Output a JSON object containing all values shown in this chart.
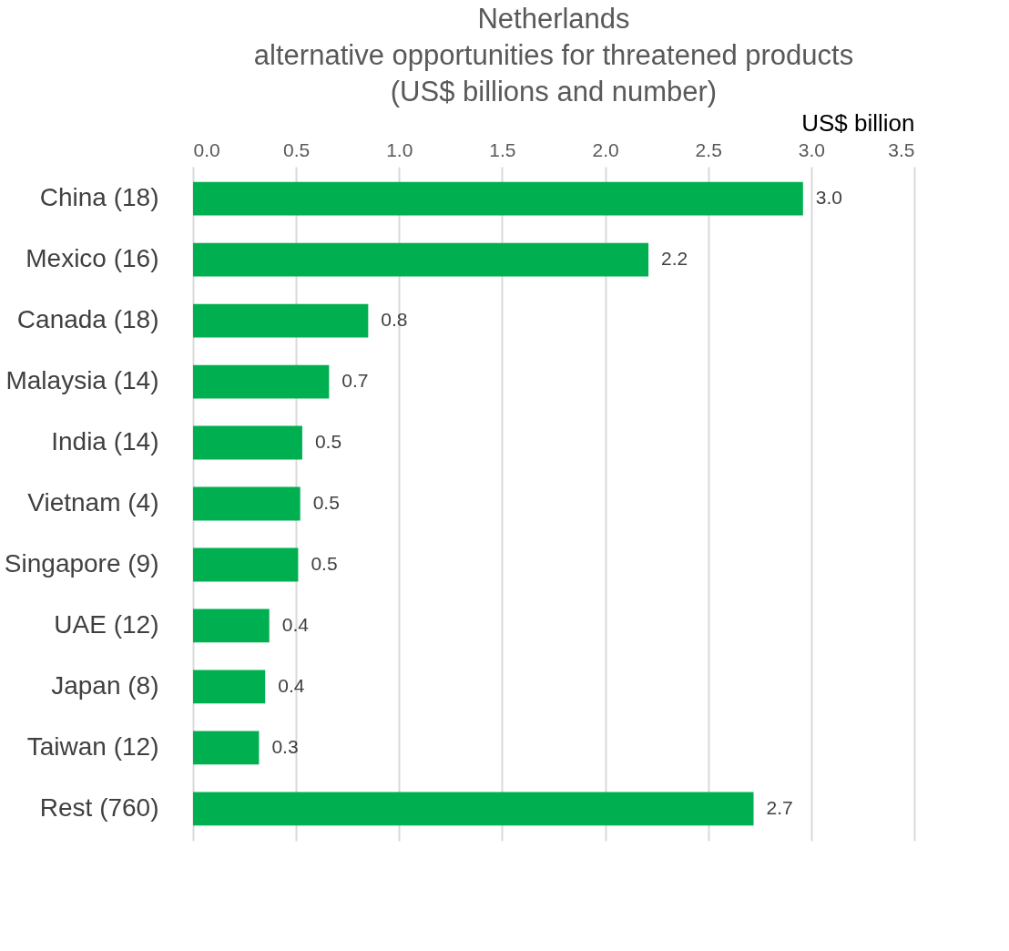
{
  "chart_data": {
    "type": "bar",
    "orientation": "horizontal",
    "title": "Netherlands\nalternative opportunities for threatened products\n(US$ billions and number)",
    "xlabel": "US$ billion",
    "categories": [
      "China (18)",
      "Mexico (16)",
      "Canada (18)",
      "Malaysia (14)",
      "India (14)",
      "Vietnam (4)",
      "Singapore (9)",
      "UAE (12)",
      "Japan (8)",
      "Taiwan (12)",
      "Rest (760)"
    ],
    "values": [
      2.96,
      2.21,
      0.85,
      0.66,
      0.53,
      0.52,
      0.51,
      0.37,
      0.35,
      0.32,
      2.72
    ],
    "value_labels": [
      "3.0",
      "2.2",
      "0.8",
      "0.7",
      "0.5",
      "0.5",
      "0.5",
      "0.4",
      "0.4",
      "0.3",
      "2.7"
    ],
    "color": "#00b050",
    "xlim": [
      0,
      3.5
    ],
    "xticks": [
      {
        "value": 0,
        "label": "0.0"
      },
      0.5,
      {
        "value": 1,
        "label": "1.0"
      },
      1.5,
      {
        "value": 2,
        "label": "2.0"
      },
      2.5,
      {
        "value": 3,
        "label": "3.0"
      },
      3.5
    ],
    "grid": "x"
  }
}
